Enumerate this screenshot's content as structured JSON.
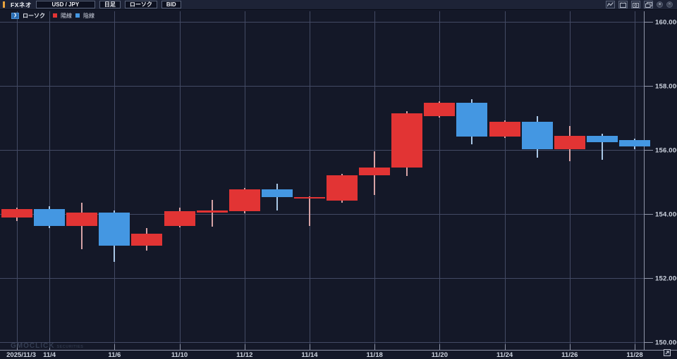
{
  "toolbar": {
    "app_label": "FXネオ",
    "symbol": "USD / JPY",
    "timeframe": "日足",
    "chart_type": "ローソク",
    "price_mode": "BID"
  },
  "legend": {
    "series_label": "ローソク",
    "bull_label": "陽線",
    "bear_label": "陰線"
  },
  "watermark": {
    "brand": "GMOCLICK",
    "sub": "SECURITIES"
  },
  "colors": {
    "bull": "#e23434",
    "bear": "#4497e2",
    "bull_wick": "#d6a3a6",
    "bear_wick": "#a9c7e6",
    "grid": "#434a64",
    "axis": "#8f95a8",
    "background": "#141828",
    "accent": "#e8a33d"
  },
  "chart_data": {
    "type": "candlestick",
    "title": "USD/JPY 日足 ローソク BID",
    "ylim": [
      149.75,
      160.07
    ],
    "y_axis": [
      {
        "price": 160,
        "label": "160.000"
      },
      {
        "price": 158,
        "label": "158.000"
      },
      {
        "price": 156,
        "label": "156.000"
      },
      {
        "price": 154,
        "label": "154.000"
      },
      {
        "price": 152,
        "label": "152.000"
      },
      {
        "price": 150,
        "label": "150.000"
      }
    ],
    "x_axis": [
      {
        "i": 0,
        "label": "2025/11/3"
      },
      {
        "i": 1,
        "label": "11/4"
      },
      {
        "i": 3,
        "label": "11/6"
      },
      {
        "i": 5,
        "label": "11/10"
      },
      {
        "i": 7,
        "label": "11/12"
      },
      {
        "i": 9,
        "label": "11/14"
      },
      {
        "i": 11,
        "label": "11/18"
      },
      {
        "i": 13,
        "label": "11/20"
      },
      {
        "i": 15,
        "label": "11/24"
      },
      {
        "i": 17,
        "label": "11/26"
      },
      {
        "i": 19,
        "label": "11/28"
      }
    ],
    "candles": [
      {
        "date": "11/3",
        "open": 153.9,
        "high": 154.2,
        "low": 153.78,
        "close": 154.15
      },
      {
        "date": "11/4",
        "open": 154.15,
        "high": 154.25,
        "low": 153.55,
        "close": 153.62
      },
      {
        "date": "11/5",
        "open": 153.62,
        "high": 154.35,
        "low": 152.9,
        "close": 154.05
      },
      {
        "date": "11/6",
        "open": 154.05,
        "high": 154.12,
        "low": 152.5,
        "close": 153.0
      },
      {
        "date": "11/7",
        "open": 153.0,
        "high": 153.55,
        "low": 152.85,
        "close": 153.38
      },
      {
        "date": "11/10",
        "open": 153.62,
        "high": 154.2,
        "low": 153.58,
        "close": 154.08
      },
      {
        "date": "11/11",
        "open": 154.05,
        "high": 154.45,
        "low": 153.6,
        "close": 154.1
      },
      {
        "date": "11/12",
        "open": 154.08,
        "high": 154.82,
        "low": 154.02,
        "close": 154.78
      },
      {
        "date": "11/13",
        "open": 154.78,
        "high": 154.95,
        "low": 154.1,
        "close": 154.52
      },
      {
        "date": "11/14",
        "open": 154.5,
        "high": 154.56,
        "low": 153.62,
        "close": 154.53
      },
      {
        "date": "11/17",
        "open": 154.42,
        "high": 155.25,
        "low": 154.35,
        "close": 155.2
      },
      {
        "date": "11/18",
        "open": 155.2,
        "high": 155.95,
        "low": 154.6,
        "close": 155.45
      },
      {
        "date": "11/19",
        "open": 155.45,
        "high": 157.2,
        "low": 155.18,
        "close": 157.15
      },
      {
        "date": "11/20",
        "open": 157.05,
        "high": 157.52,
        "low": 157.0,
        "close": 157.48
      },
      {
        "date": "11/21",
        "open": 157.48,
        "high": 157.58,
        "low": 156.18,
        "close": 156.42
      },
      {
        "date": "11/24",
        "open": 156.42,
        "high": 156.92,
        "low": 156.38,
        "close": 156.88
      },
      {
        "date": "11/25",
        "open": 156.88,
        "high": 157.05,
        "low": 155.75,
        "close": 156.02
      },
      {
        "date": "11/26",
        "open": 156.02,
        "high": 156.75,
        "low": 155.65,
        "close": 156.45
      },
      {
        "date": "11/27",
        "open": 156.45,
        "high": 156.5,
        "low": 155.7,
        "close": 156.25
      },
      {
        "date": "11/28",
        "open": 156.3,
        "high": 156.36,
        "low": 156.02,
        "close": 156.12
      }
    ]
  }
}
